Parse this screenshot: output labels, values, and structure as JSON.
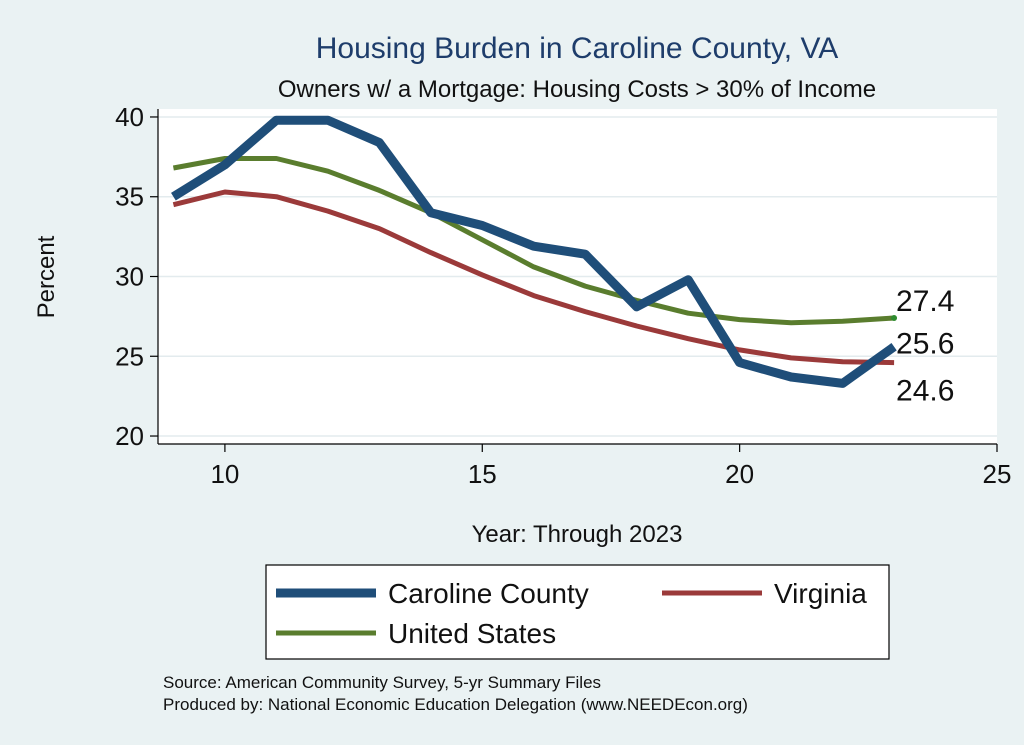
{
  "chart_data": {
    "type": "line",
    "title": "Housing Burden in Caroline County, VA",
    "subtitle": "Owners w/ a Mortgage: Housing Costs > 30% of Income",
    "xlabel": "Year: Through 2023",
    "ylabel": "Percent",
    "xlim": [
      8.7,
      25
    ],
    "ylim": [
      19.5,
      40.5
    ],
    "xticks": [
      10,
      15,
      20,
      25
    ],
    "yticks": [
      20,
      25,
      30,
      35,
      40
    ],
    "grid": true,
    "legend_position": "bottom",
    "x": [
      9,
      10,
      11,
      12,
      13,
      14,
      15,
      16,
      17,
      18,
      19,
      20,
      21,
      22,
      23
    ],
    "series": [
      {
        "name": "Caroline County",
        "color": "#1f4e79",
        "values": [
          35.0,
          37.0,
          39.8,
          39.8,
          38.4,
          34.0,
          33.2,
          31.9,
          31.4,
          28.1,
          29.8,
          24.6,
          23.7,
          23.3,
          25.6
        ],
        "end_label": "25.6"
      },
      {
        "name": "Virginia",
        "color": "#9b3a3a",
        "values": [
          34.5,
          35.3,
          35.0,
          34.1,
          33.0,
          31.5,
          30.1,
          28.8,
          27.8,
          26.9,
          26.1,
          25.4,
          24.9,
          24.65,
          24.6
        ],
        "end_label": "24.6"
      },
      {
        "name": "United States",
        "color": "#5a7d2e",
        "values": [
          36.8,
          37.4,
          37.4,
          36.6,
          35.4,
          34.0,
          32.3,
          30.6,
          29.4,
          28.5,
          27.7,
          27.3,
          27.1,
          27.2,
          27.4
        ],
        "end_label": "27.4"
      }
    ]
  },
  "notes": {
    "source": "Source: American Community Survey, 5-yr Summary Files",
    "produced_by": "Produced by: National Economic Education Delegation (www.NEEDEcon.org)"
  }
}
